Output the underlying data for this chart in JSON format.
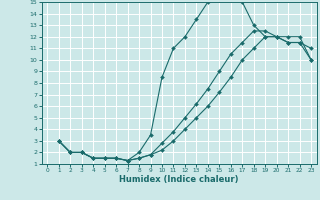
{
  "xlabel": "Humidex (Indice chaleur)",
  "bg_color": "#cce8e8",
  "grid_color": "#ffffff",
  "line_color": "#1a6b6b",
  "xlim": [
    -0.5,
    23.5
  ],
  "ylim": [
    1,
    15
  ],
  "xticks": [
    0,
    1,
    2,
    3,
    4,
    5,
    6,
    7,
    8,
    9,
    10,
    11,
    12,
    13,
    14,
    15,
    16,
    17,
    18,
    19,
    20,
    21,
    22,
    23
  ],
  "yticks": [
    1,
    2,
    3,
    4,
    5,
    6,
    7,
    8,
    9,
    10,
    11,
    12,
    13,
    14,
    15
  ],
  "line1_x": [
    1,
    2,
    3,
    4,
    5,
    6,
    7,
    8,
    9,
    10,
    11,
    12,
    13,
    14,
    15,
    16,
    17,
    18,
    19,
    20,
    21,
    22,
    23
  ],
  "line1_y": [
    3,
    2,
    2,
    1.5,
    1.5,
    1.5,
    1.3,
    2,
    3.5,
    8.5,
    11,
    12,
    13.5,
    15,
    15.5,
    15.5,
    15,
    13,
    12,
    12,
    11.5,
    11.5,
    11
  ],
  "line2_x": [
    1,
    2,
    3,
    4,
    5,
    6,
    7,
    8,
    9,
    10,
    11,
    12,
    13,
    14,
    15,
    16,
    17,
    18,
    19,
    20,
    21,
    22,
    23
  ],
  "line2_y": [
    3,
    2,
    2,
    1.5,
    1.5,
    1.5,
    1.3,
    1.5,
    1.8,
    2.8,
    3.8,
    5.0,
    6.2,
    7.5,
    9.0,
    10.5,
    11.5,
    12.5,
    12.5,
    12.0,
    12.0,
    12.0,
    10.0
  ],
  "line3_x": [
    1,
    2,
    3,
    4,
    5,
    6,
    7,
    8,
    9,
    10,
    11,
    12,
    13,
    14,
    15,
    16,
    17,
    18,
    19,
    20,
    21,
    22,
    23
  ],
  "line3_y": [
    3,
    2,
    2,
    1.5,
    1.5,
    1.5,
    1.3,
    1.5,
    1.8,
    2.2,
    3.0,
    4.0,
    5.0,
    6.0,
    7.2,
    8.5,
    10.0,
    11.0,
    12.0,
    12.0,
    11.5,
    11.5,
    10.0
  ]
}
